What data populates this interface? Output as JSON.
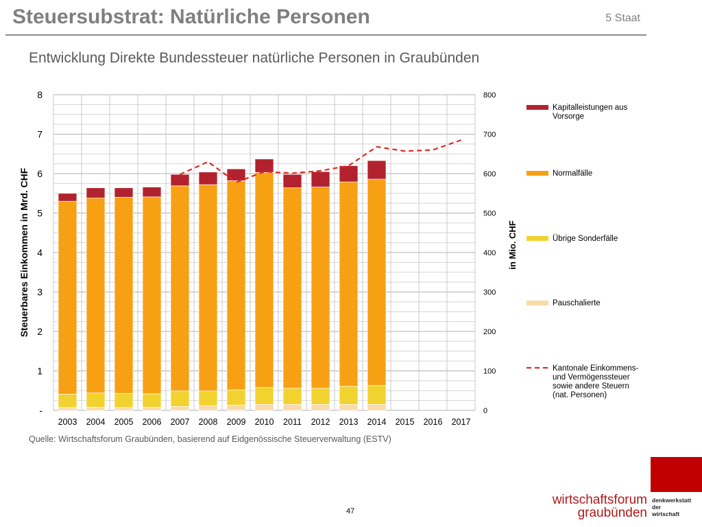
{
  "header": {
    "title": "Steuersubstrat: Natürliche Personen",
    "section": "5 Staat"
  },
  "chart_title": "Entwicklung Direkte Bundessteuer natürliche Personen in Graubünden",
  "source": "Quelle: Wirtschaftsforum Graubünden, basierend auf Eidgenössische Steuerverwaltung (ESTV)",
  "page_number": "47",
  "brand": {
    "name_line1": "wirtschaftsforum",
    "name_line2": "graubünden",
    "tag_line1": "denkwerkstatt",
    "tag_line2": "der",
    "tag_line3": "wirtschaft",
    "block_color": "#c00000"
  },
  "chart_data": {
    "type": "bar",
    "stacked": true,
    "categories": [
      "2003",
      "2004",
      "2005",
      "2006",
      "2007",
      "2008",
      "2009",
      "2010",
      "2011",
      "2012",
      "2013",
      "2014",
      "2015",
      "2016",
      "2017"
    ],
    "y_left": {
      "label": "Steuerbares Einkommen in Mrd. CHF",
      "range": [
        0,
        8
      ],
      "ticks": [
        0,
        1,
        2,
        3,
        4,
        5,
        6,
        7,
        8
      ],
      "tick_labels": [
        "-",
        "1",
        "2",
        "3",
        "4",
        "5",
        "6",
        "7",
        "8"
      ]
    },
    "y_right": {
      "label": "in Mio. CHF",
      "range": [
        0,
        800
      ],
      "ticks": [
        0,
        100,
        200,
        300,
        400,
        500,
        600,
        700,
        800
      ],
      "tick_labels": [
        "0",
        "100",
        "200",
        "300",
        "400",
        "500",
        "600",
        "700",
        "800"
      ]
    },
    "series": [
      {
        "name": "Pauschalierte",
        "color": "#fbd9a8",
        "axis": "left",
        "values": [
          0.07,
          0.08,
          0.07,
          0.08,
          0.1,
          0.12,
          0.13,
          0.15,
          0.15,
          0.15,
          0.15,
          0.15,
          null,
          null,
          null
        ]
      },
      {
        "name": "Übrige Sonderfälle",
        "color": "#f2d22e",
        "axis": "left",
        "values": [
          0.34,
          0.36,
          0.36,
          0.34,
          0.39,
          0.37,
          0.39,
          0.43,
          0.41,
          0.41,
          0.46,
          0.48,
          null,
          null,
          null
        ]
      },
      {
        "name": "Normalfälle",
        "color": "#f7a014",
        "axis": "left",
        "values": [
          4.89,
          4.94,
          4.97,
          4.99,
          5.2,
          5.23,
          5.3,
          5.45,
          5.08,
          5.1,
          5.18,
          5.23,
          null,
          null,
          null
        ]
      },
      {
        "name": "Kapitalleistungen aus Vorsorge",
        "color": "#b2222e",
        "axis": "left",
        "values": [
          0.2,
          0.26,
          0.24,
          0.25,
          0.29,
          0.32,
          0.3,
          0.34,
          0.34,
          0.39,
          0.41,
          0.47,
          null,
          null,
          null
        ]
      },
      {
        "name": "Kantonale Einkommens- und Vermögenssteuer sowie andere Steuern (nat. Personen)",
        "color": "#e3281f",
        "axis": "right",
        "style": "dashed",
        "values": [
          null,
          null,
          null,
          null,
          598,
          630,
          578,
          605,
          601,
          607,
          620,
          668,
          657,
          660,
          685
        ]
      }
    ],
    "legend_position": "right",
    "grid": true
  }
}
